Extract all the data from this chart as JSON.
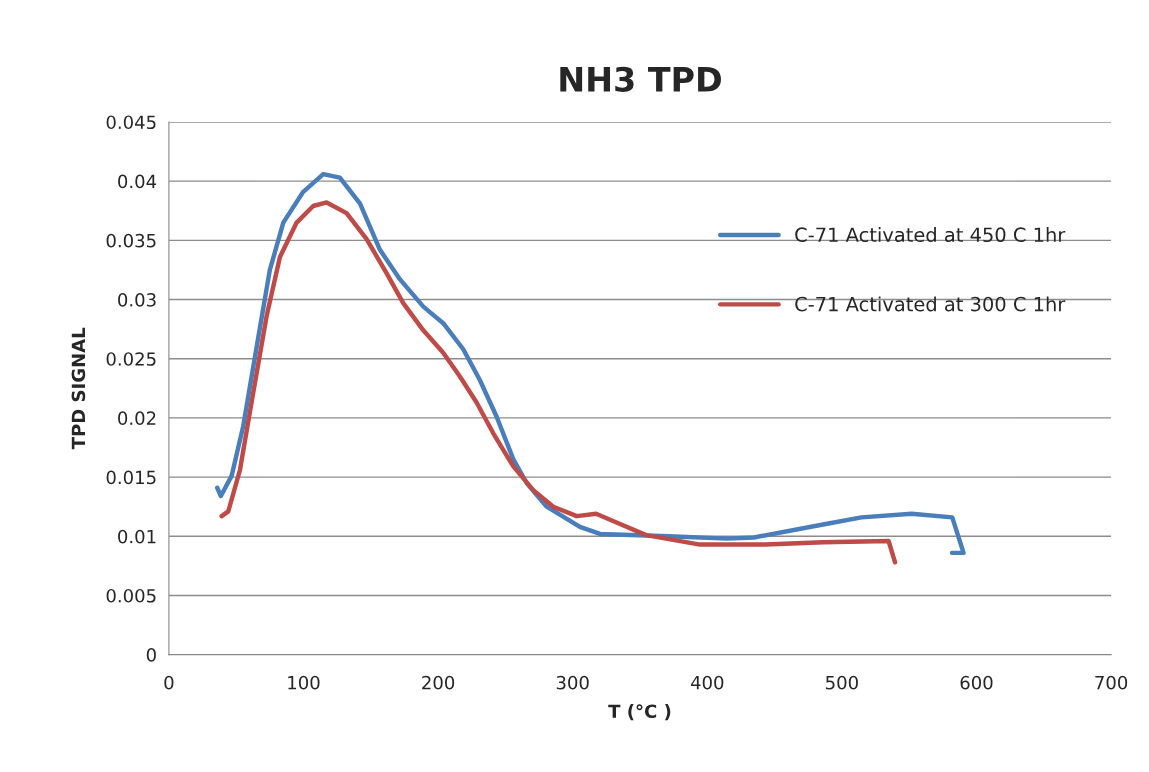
{
  "chart_data": {
    "type": "line",
    "title": "NH3 TPD",
    "xlabel": "T (°C )",
    "ylabel": "TPD SIGNAL",
    "xlim": [
      0,
      700
    ],
    "xticks": [
      0,
      100,
      200,
      300,
      400,
      500,
      600,
      700
    ],
    "ylim": [
      0,
      0.045
    ],
    "yticks": [
      {
        "value": 0,
        "label": "0"
      },
      {
        "value": 0.005,
        "label": "0.005"
      },
      {
        "value": 0.01,
        "label": "0.01"
      },
      {
        "value": 0.015,
        "label": "0.015"
      },
      {
        "value": 0.02,
        "label": "0.02"
      },
      {
        "value": 0.025,
        "label": "0.025"
      },
      {
        "value": 0.03,
        "label": "0.03"
      },
      {
        "value": 0.035,
        "label": "0.035"
      },
      {
        "value": 0.04,
        "label": "0.04"
      },
      {
        "value": 0.045,
        "label": "0.045"
      }
    ],
    "grid": "y",
    "legend": "right",
    "marker": "none",
    "line_style": "solid",
    "series": [
      {
        "name": "C-71 Activated at 450 C 1hr",
        "color": "#4a7ebb",
        "x": [
          35.9,
          38.6,
          46.6,
          55.2,
          65.2,
          75,
          85,
          99.8,
          114.7,
          127,
          142,
          156.8,
          171.7,
          189,
          203.8,
          218.7,
          231,
          243.5,
          255.9,
          265.8,
          280.7,
          305.4,
          320.3,
          371.7,
          414.6,
          434.6,
          486,
          514.6,
          551.8,
          582,
          590.4,
          581.8
        ],
        "values": [
          0.0141,
          0.0134,
          0.0151,
          0.0193,
          0.026,
          0.0325,
          0.0365,
          0.0391,
          0.0406,
          0.0403,
          0.0381,
          0.0342,
          0.0317,
          0.0294,
          0.028,
          0.0258,
          0.0232,
          0.0201,
          0.0165,
          0.0145,
          0.0125,
          0.0108,
          0.0102,
          0.01,
          0.0098,
          0.0099,
          0.011,
          0.0116,
          0.0119,
          0.0116,
          0.0086,
          0.0086
        ]
      },
      {
        "name": "C-71 Activated at 300 C 1hr",
        "color": "#be4b48",
        "x": [
          39.2,
          44.1,
          52.8,
          62.6,
          72.6,
          82.5,
          94.9,
          107.2,
          117.2,
          132,
          146.9,
          161.8,
          174.1,
          189,
          203.8,
          216.2,
          228.6,
          241,
          255.9,
          270.7,
          285.6,
          303,
          317.4,
          331.7,
          354.6,
          394.6,
          443.2,
          486,
          534.7,
          539.5
        ],
        "values": [
          0.0117,
          0.0121,
          0.0156,
          0.0221,
          0.0286,
          0.0336,
          0.0365,
          0.0379,
          0.0382,
          0.0373,
          0.0351,
          0.0322,
          0.0297,
          0.0274,
          0.0255,
          0.0235,
          0.0213,
          0.0187,
          0.0159,
          0.0139,
          0.0125,
          0.0117,
          0.0119,
          0.0112,
          0.0101,
          0.0093,
          0.0093,
          0.0095,
          0.0096,
          0.0078
        ]
      }
    ]
  }
}
